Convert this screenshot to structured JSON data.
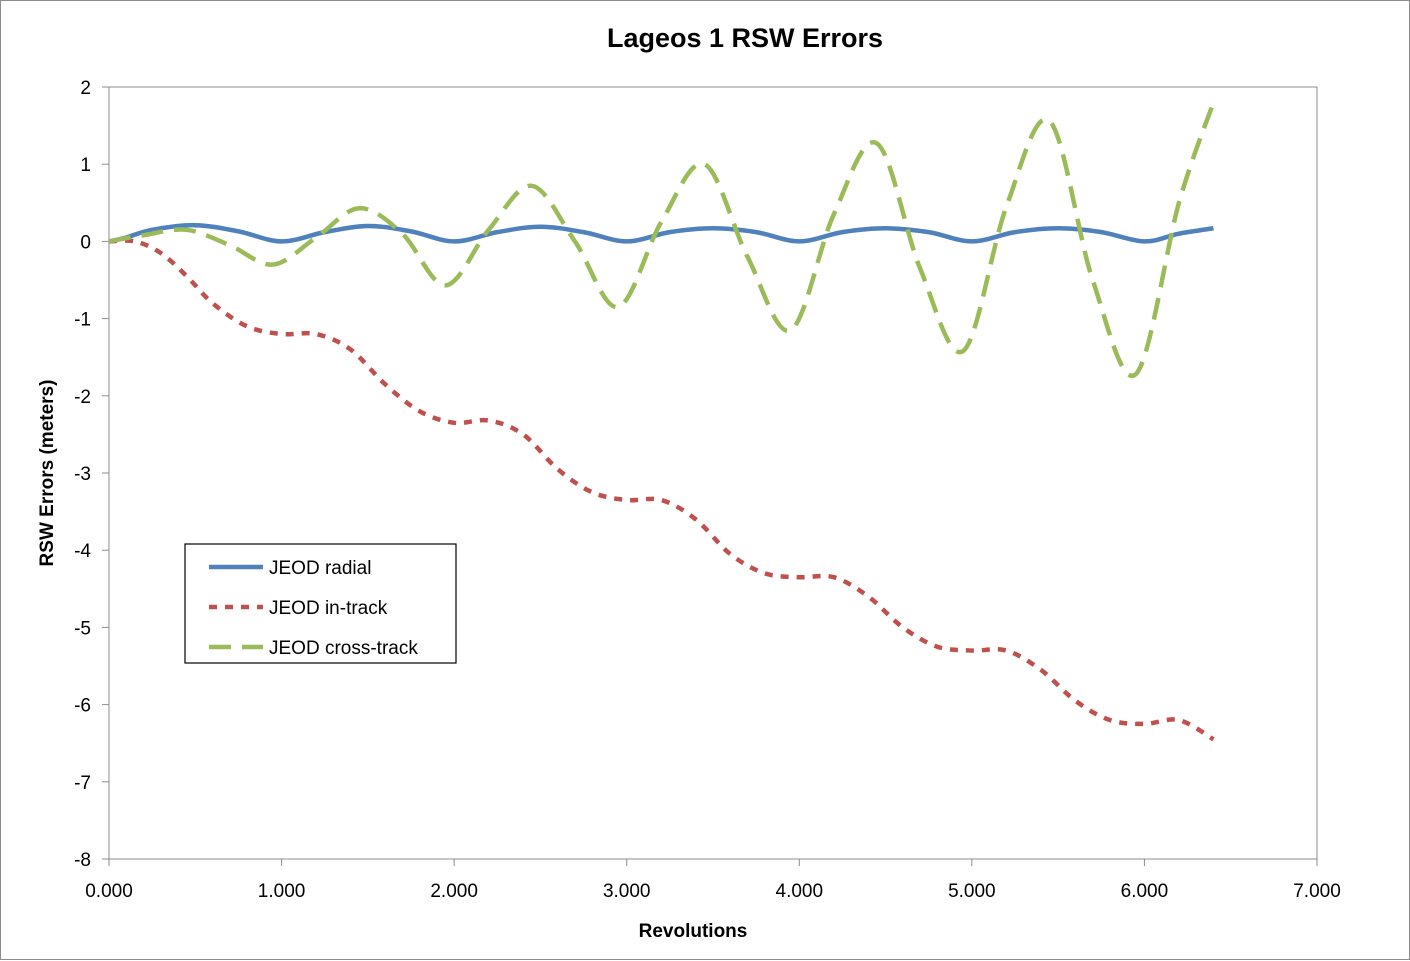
{
  "chart_data": {
    "type": "line",
    "title": "Lageos 1 RSW Errors",
    "xlabel": "Revolutions",
    "ylabel": "RSW Errors (meters)",
    "xlim": [
      0,
      7
    ],
    "ylim": [
      -8,
      2
    ],
    "x_ticks": [
      0,
      1,
      2,
      3,
      4,
      5,
      6,
      7
    ],
    "x_tick_labels": [
      "0.000",
      "1.000",
      "2.000",
      "3.000",
      "4.000",
      "5.000",
      "6.000",
      "7.000"
    ],
    "y_ticks": [
      2,
      1,
      0,
      -1,
      -2,
      -3,
      -4,
      -5,
      -6,
      -7,
      -8
    ],
    "y_tick_labels": [
      "2",
      "1",
      "0",
      "-1",
      "-2",
      "-3",
      "-4",
      "-5",
      "-6",
      "-7",
      "-8"
    ],
    "grid": false,
    "legend_position": "left-lower",
    "x": [
      0.0,
      0.2,
      0.5,
      0.75,
      1.0,
      1.25,
      1.5,
      1.75,
      2.0,
      2.25,
      2.5,
      2.75,
      3.0,
      3.25,
      3.5,
      3.75,
      4.0,
      4.25,
      4.5,
      4.75,
      5.0,
      5.25,
      5.5,
      5.75,
      6.0,
      6.25,
      6.4
    ],
    "series": [
      {
        "name": "JEOD radial",
        "color": "#4f81bd",
        "dash": "solid",
        "x": [
          0.0,
          0.1,
          0.25,
          0.5,
          0.75,
          1.0,
          1.25,
          1.5,
          1.75,
          2.0,
          2.25,
          2.5,
          2.75,
          3.0,
          3.25,
          3.5,
          3.75,
          4.0,
          4.25,
          4.5,
          4.75,
          5.0,
          5.25,
          5.5,
          5.75,
          6.0,
          6.2,
          6.4
        ],
        "values": [
          0.0,
          0.05,
          0.15,
          0.21,
          0.13,
          0.0,
          0.12,
          0.2,
          0.13,
          0.0,
          0.12,
          0.19,
          0.12,
          0.0,
          0.12,
          0.17,
          0.12,
          0.0,
          0.12,
          0.17,
          0.12,
          0.0,
          0.12,
          0.17,
          0.12,
          0.0,
          0.1,
          0.17
        ]
      },
      {
        "name": "JEOD in-track",
        "color": "#c0504d",
        "dash": "short",
        "x": [
          0.0,
          0.15,
          0.3,
          0.45,
          0.6,
          0.8,
          1.0,
          1.2,
          1.4,
          1.6,
          1.8,
          2.0,
          2.2,
          2.4,
          2.6,
          2.8,
          3.0,
          3.2,
          3.4,
          3.6,
          3.8,
          4.0,
          4.2,
          4.4,
          4.6,
          4.8,
          5.0,
          5.2,
          5.4,
          5.6,
          5.8,
          6.0,
          6.2,
          6.4
        ],
        "values": [
          0.0,
          0.0,
          -0.15,
          -0.45,
          -0.8,
          -1.1,
          -1.2,
          -1.2,
          -1.4,
          -1.85,
          -2.2,
          -2.35,
          -2.32,
          -2.5,
          -2.95,
          -3.25,
          -3.35,
          -3.35,
          -3.6,
          -4.05,
          -4.3,
          -4.35,
          -4.35,
          -4.6,
          -5.0,
          -5.25,
          -5.3,
          -5.3,
          -5.55,
          -5.95,
          -6.2,
          -6.25,
          -6.2,
          -6.45
        ]
      },
      {
        "name": "JEOD cross-track",
        "color": "#9bbb59",
        "dash": "long",
        "x": [
          0.0,
          0.2,
          0.45,
          0.7,
          0.95,
          1.2,
          1.45,
          1.7,
          1.95,
          2.2,
          2.45,
          2.7,
          2.95,
          3.2,
          3.45,
          3.7,
          3.95,
          4.2,
          4.45,
          4.7,
          4.95,
          5.2,
          5.45,
          5.7,
          5.95,
          6.2,
          6.4
        ],
        "values": [
          0.0,
          0.08,
          0.15,
          -0.05,
          -0.3,
          0.05,
          0.43,
          0.1,
          -0.57,
          0.15,
          0.72,
          0.0,
          -0.85,
          0.25,
          1.0,
          -0.2,
          -1.15,
          0.35,
          1.27,
          -0.35,
          -1.42,
          0.45,
          1.56,
          -0.5,
          -1.72,
          0.5,
          1.8
        ]
      }
    ]
  }
}
